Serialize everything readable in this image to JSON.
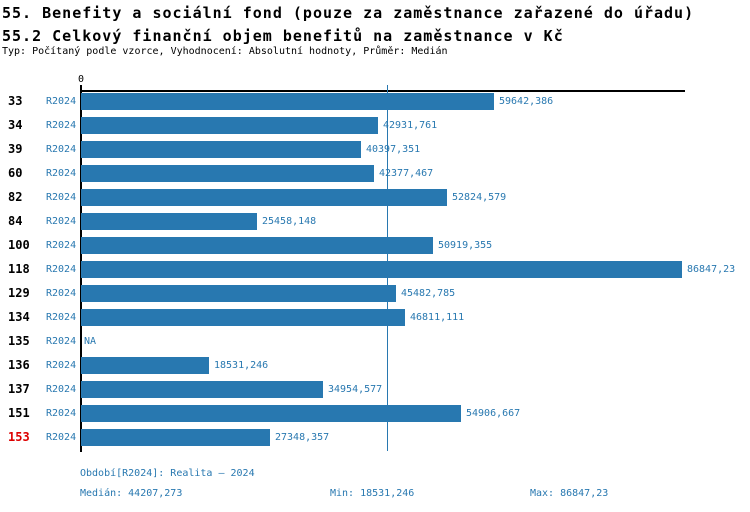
{
  "header": {
    "title_line1": "55. Benefity a sociální fond (pouze za zaměstnance zařazené do úřadu)",
    "title_line2": "55.2 Celkový finanční objem benefitů na zaměstnance v Kč",
    "subtitle": "Typ: Počítaný podle vzorce, Vyhodnocení: Absolutní hodnoty, Průměr: Medián"
  },
  "chart_data": {
    "type": "bar",
    "orientation": "horizontal",
    "title": "55.2 Celkový finanční objem benefitů na zaměstnance v Kč",
    "xlabel": "",
    "ylabel": "",
    "xlim": [
      0,
      86847.23
    ],
    "axis_zero_label": "0",
    "series_label": "R2024",
    "categories": [
      "33",
      "34",
      "39",
      "60",
      "82",
      "84",
      "100",
      "118",
      "129",
      "134",
      "135",
      "136",
      "137",
      "151",
      "153"
    ],
    "values": [
      59642.386,
      42931.761,
      40397.351,
      42377.467,
      52824.579,
      25458.148,
      50919.355,
      86847.23,
      45482.785,
      46811.111,
      null,
      18531.246,
      34954.577,
      54906.667,
      27348.357
    ],
    "value_labels": [
      "59642,386",
      "42931,761",
      "40397,351",
      "42377,467",
      "52824,579",
      "25458,148",
      "50919,355",
      "86847,23",
      "45482,785",
      "46811,111",
      "NA",
      "18531,246",
      "34954,577",
      "54906,667",
      "27348,357"
    ],
    "na_label": "NA",
    "highlighted_category": "153",
    "median_value": 44207.273,
    "legend_position": "none",
    "grid": "median-reference-line-only",
    "colors": {
      "bar": "#2878b0",
      "label_blue": "#2878b0",
      "category_black": "#000000",
      "category_highlight_red": "#dd0000",
      "axis_black": "#000000"
    }
  },
  "footer": {
    "period": "Období[R2024]: Realita – 2024",
    "median": "Medián: 44207,273",
    "min": "Min: 18531,246",
    "max": "Max: 86847,23"
  }
}
